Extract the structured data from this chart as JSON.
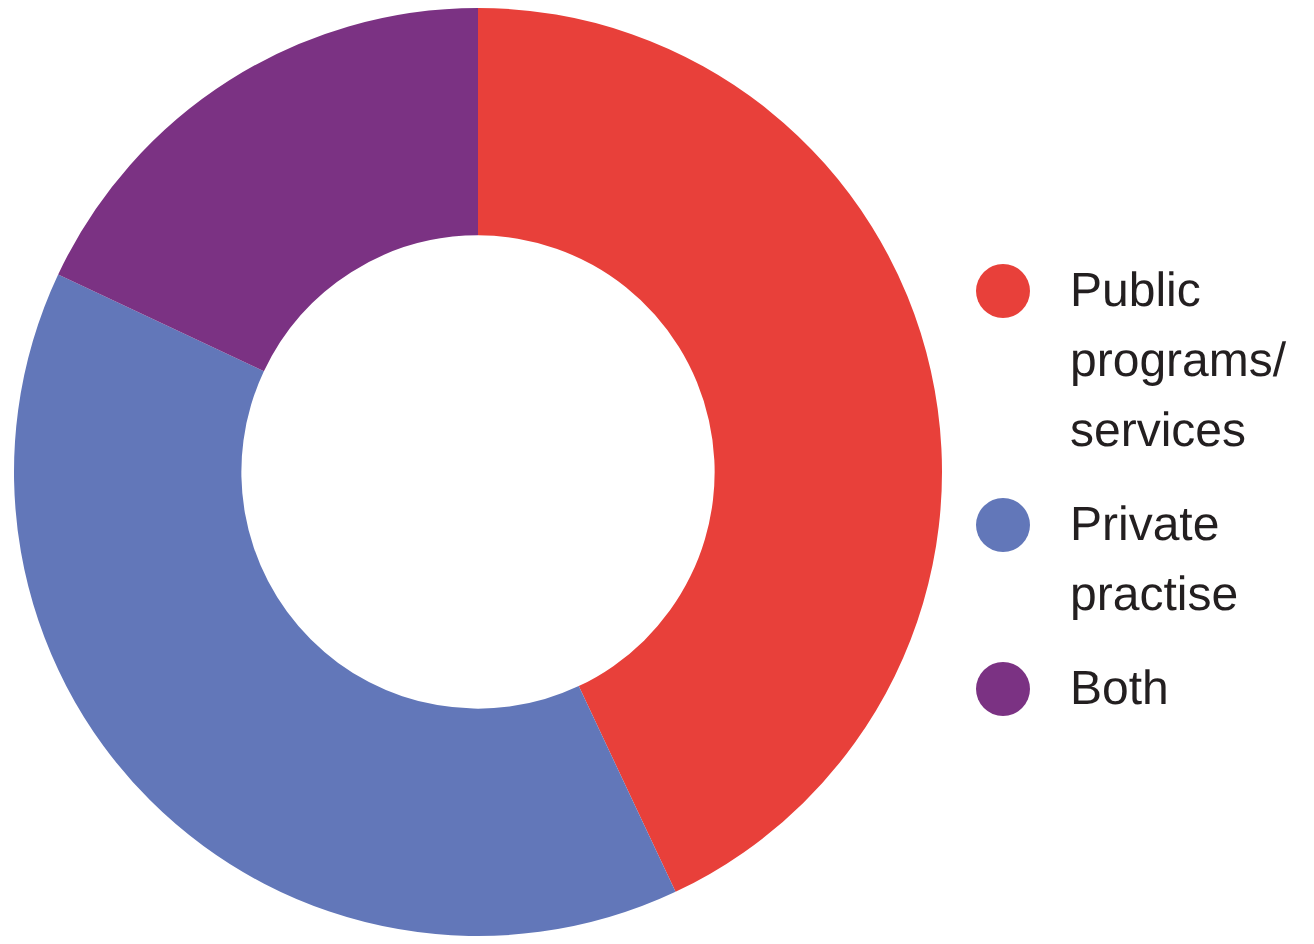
{
  "chart_data": {
    "type": "donut",
    "categories": [
      "Public programs/ services",
      "Private practise",
      "Both"
    ],
    "values": [
      43,
      39,
      18
    ],
    "colors": [
      "#e8403a",
      "#6277b9",
      "#7b3283"
    ],
    "legend": "right"
  }
}
